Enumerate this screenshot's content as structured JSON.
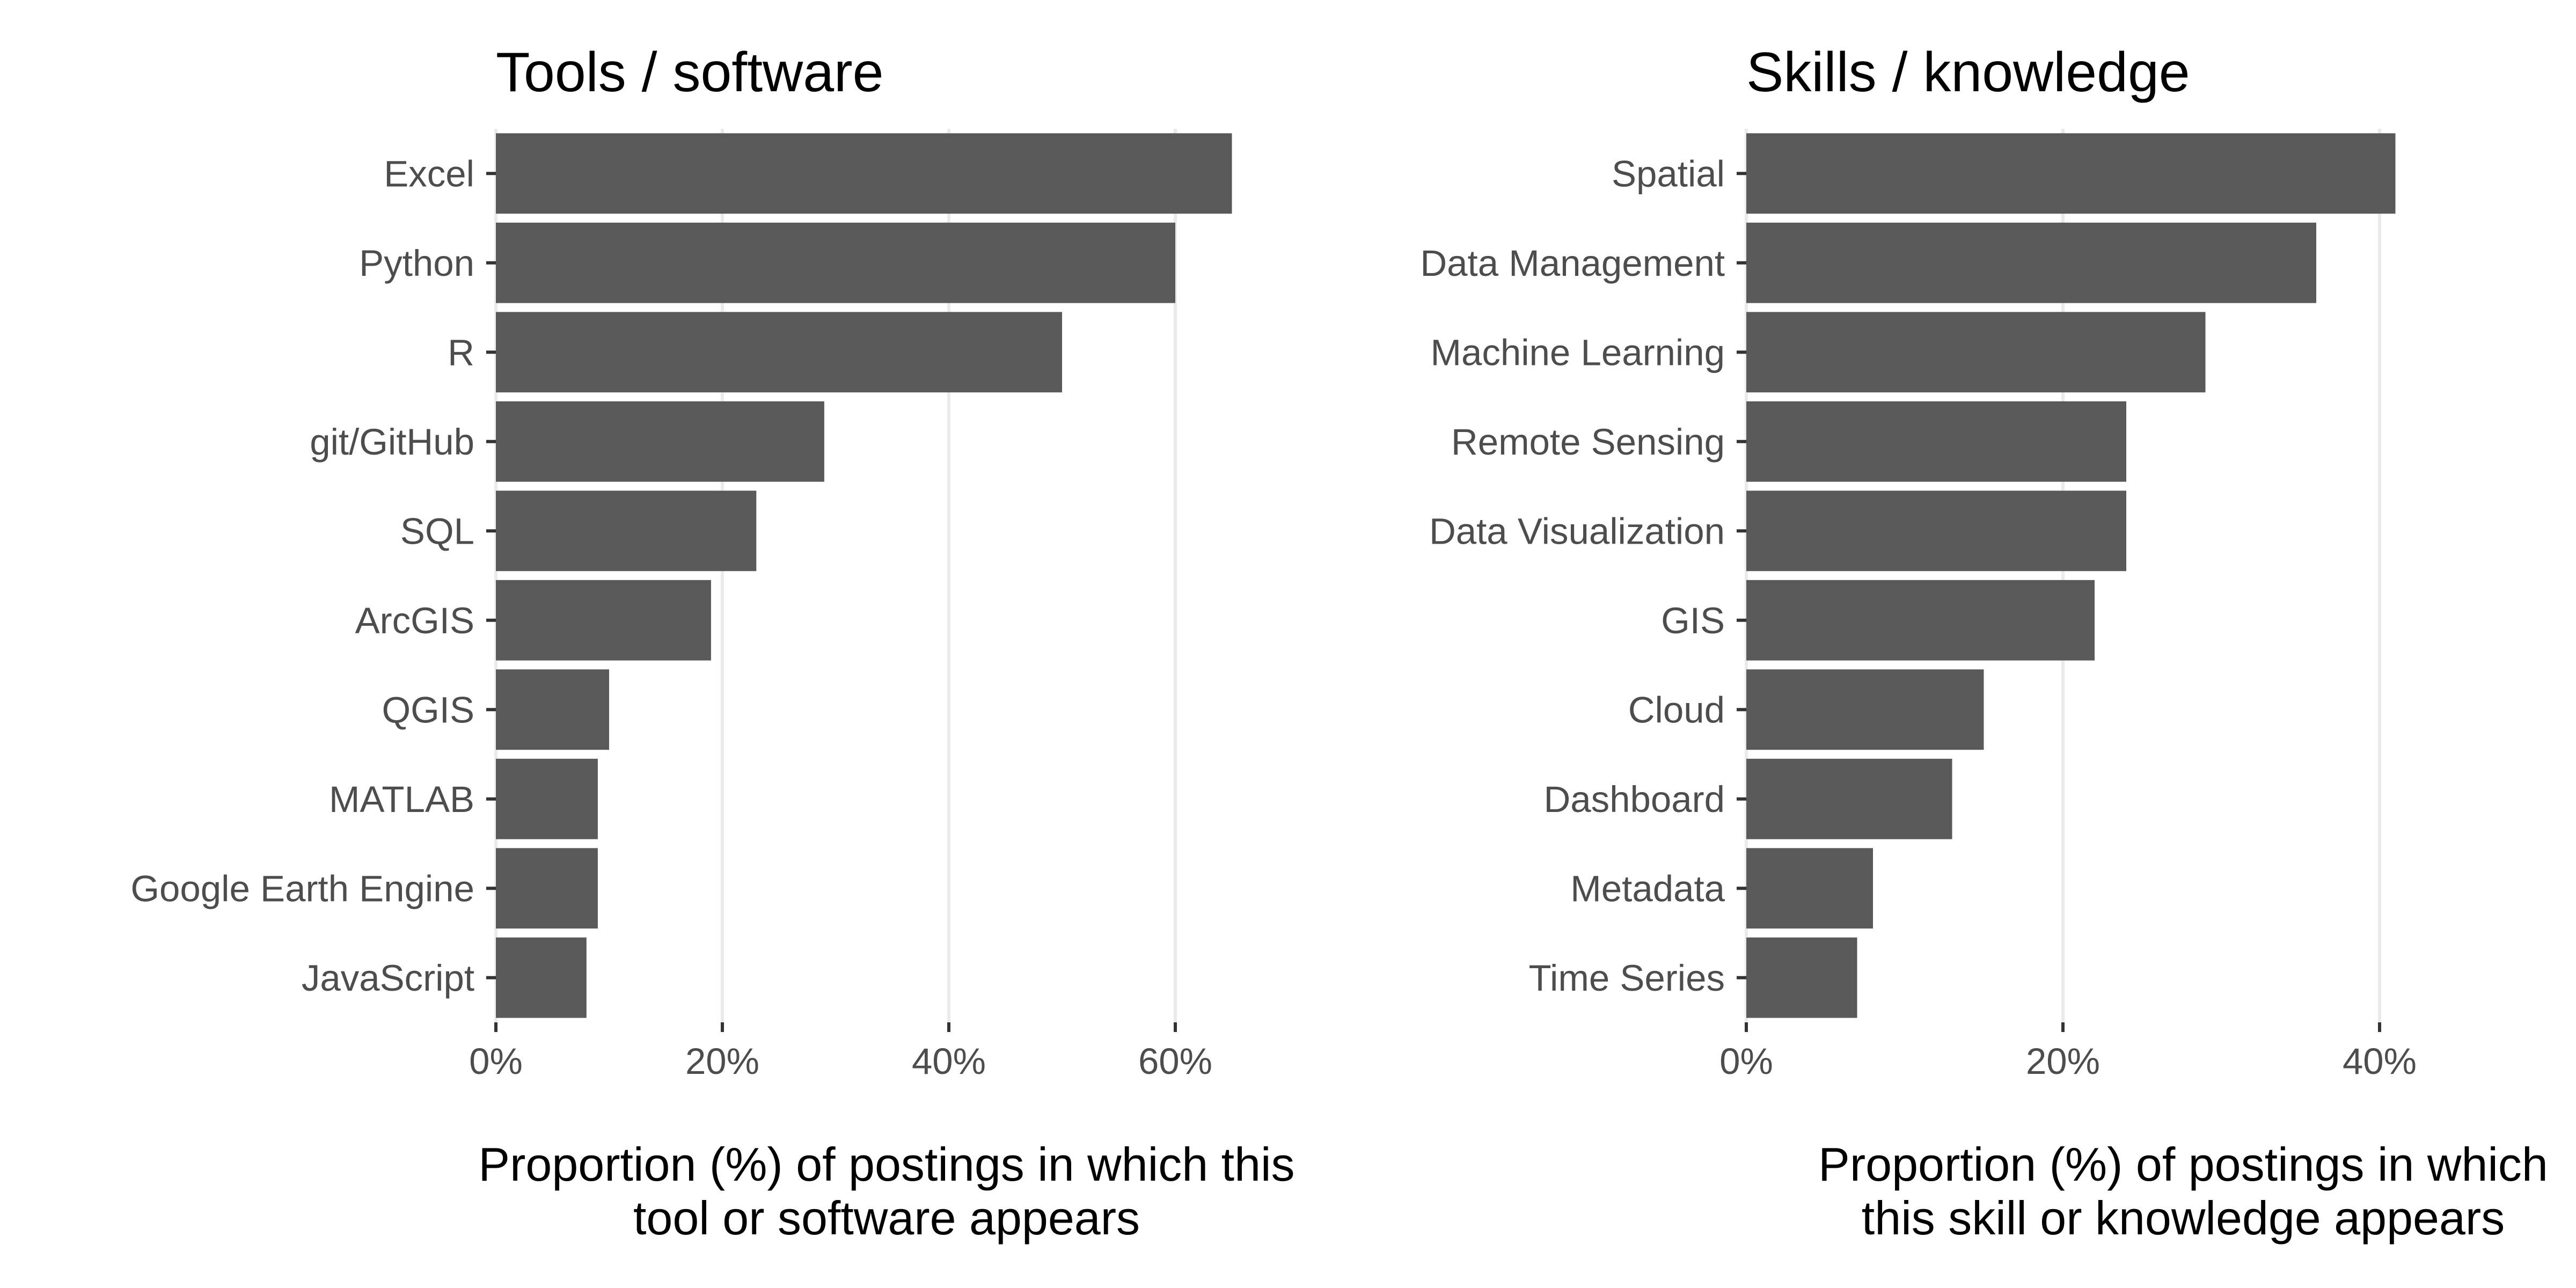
{
  "chart_data": [
    {
      "type": "bar",
      "orientation": "horizontal",
      "title": "Tools / software",
      "categories": [
        "Excel",
        "Python",
        "R",
        "git/GitHub",
        "SQL",
        "ArcGIS",
        "QGIS",
        "MATLAB",
        "Google Earth Engine",
        "JavaScript"
      ],
      "values": [
        65,
        60,
        50,
        29,
        23,
        19,
        10,
        9,
        9,
        8
      ],
      "xlabel": [
        "Proportion (%) of postings in which this",
        "tool or software appears"
      ],
      "ylabel": "",
      "xlim": [
        0,
        70
      ],
      "ticks": [
        0,
        20,
        40,
        60
      ],
      "tick_labels": [
        "0%",
        "20%",
        "40%",
        "60%"
      ],
      "bar_color": "#595959",
      "grid": true
    },
    {
      "type": "bar",
      "orientation": "horizontal",
      "title": "Skills / knowledge",
      "categories": [
        "Spatial",
        "Data Management",
        "Machine Learning",
        "Remote Sensing",
        "Data Visualization",
        "GIS",
        "Cloud",
        "Dashboard",
        "Metadata",
        "Time Series"
      ],
      "values": [
        41,
        36,
        29,
        24,
        24,
        22,
        15,
        13,
        8,
        7
      ],
      "xlabel": [
        "Proportion (%) of postings in which",
        "this skill or knowledge appears"
      ],
      "ylabel": "",
      "xlim": [
        0,
        45
      ],
      "ticks": [
        0,
        20,
        40
      ],
      "tick_labels": [
        "0%",
        "20%",
        "40%"
      ],
      "bar_color": "#595959",
      "grid": true
    }
  ]
}
